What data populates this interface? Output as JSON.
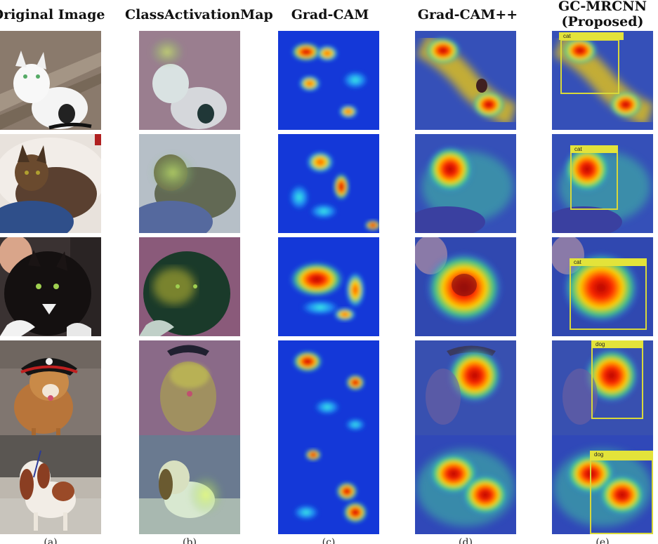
{
  "columns": [
    {
      "title": "Original Image",
      "label": "(a)"
    },
    {
      "title": "ClassActivationMap",
      "label": "(b)"
    },
    {
      "title": "Grad-CAM",
      "label": "(c)"
    },
    {
      "title": "Grad-CAM++",
      "label": "(d)"
    },
    {
      "title": "GC-MRCNN\n(Proposed)",
      "label": "(e)"
    }
  ],
  "detections": [
    "cat",
    "cat",
    "cat",
    "dog",
    "dog"
  ],
  "colors": {
    "box": "#d8d83a",
    "tag": "#e3e33a",
    "heat_hot": "#e01010",
    "heat_cold": "#1030c8"
  }
}
